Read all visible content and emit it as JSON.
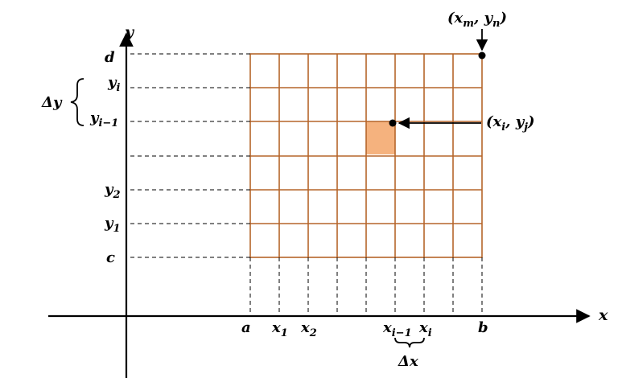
{
  "axes": {
    "x_label": "x",
    "y_label": "y"
  },
  "x_ticks": {
    "a": "a",
    "x1": {
      "base": "x",
      "sub": "1"
    },
    "x2": {
      "base": "x",
      "sub": "2"
    },
    "xi_minus_1": {
      "base": "x",
      "sub": "i−1"
    },
    "xi": {
      "base": "x",
      "sub": "i"
    },
    "b": "b"
  },
  "y_ticks": {
    "c": "c",
    "y1": {
      "base": "y",
      "sub": "1"
    },
    "y2": {
      "base": "y",
      "sub": "2"
    },
    "yi_minus_1": {
      "base": "y",
      "sub": "i−1"
    },
    "yi": {
      "base": "y",
      "sub": "i"
    },
    "d": "d"
  },
  "delta_x": "Δx",
  "delta_y": "Δy",
  "point_ij": {
    "open": "(",
    "x": "x",
    "x_sub": "i",
    "comma": ", ",
    "y": "y",
    "y_sub": "j",
    "close": ")"
  },
  "point_mn": {
    "open": "(",
    "x": "x",
    "x_sub": "m",
    "comma": ", ",
    "y": "y",
    "y_sub": "n",
    "close": ")"
  },
  "grid": {
    "columns": 8,
    "rows": 6
  },
  "colors": {
    "grid": "#b5652a",
    "highlight": "#f5b27e"
  }
}
